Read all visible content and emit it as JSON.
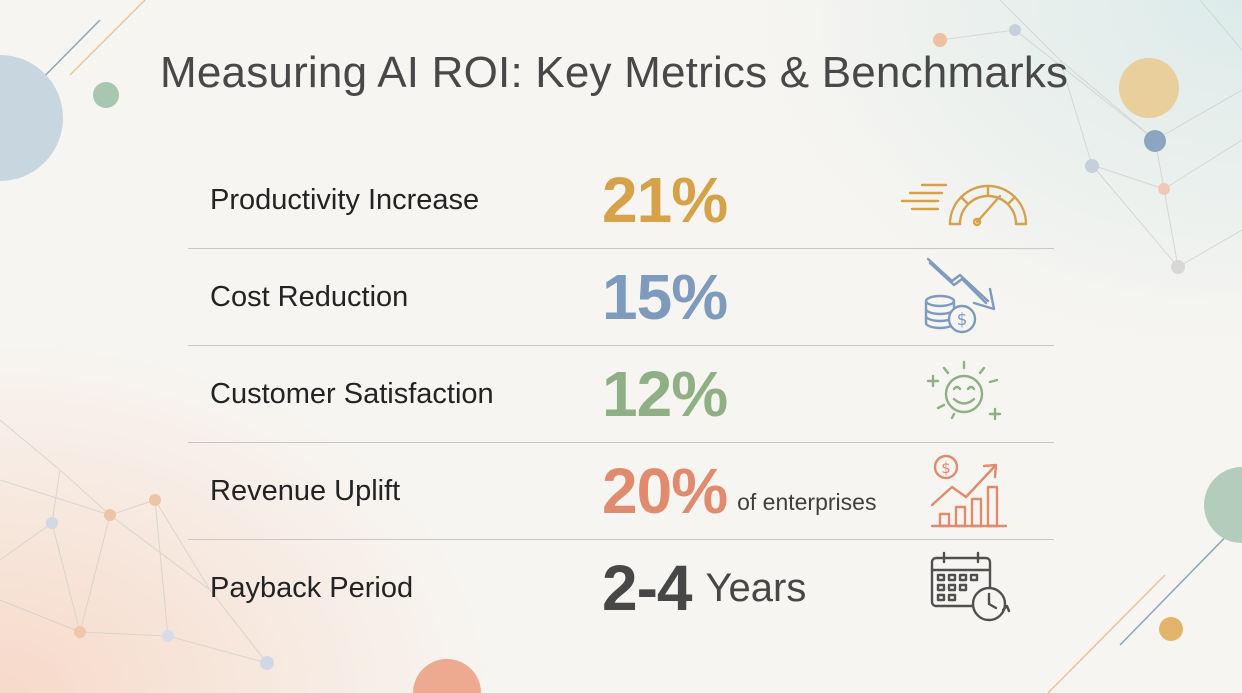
{
  "title": "Measuring AI ROI: Key Metrics & Benchmarks",
  "colors": {
    "gold": "#d5a24a",
    "blue": "#7e9bbd",
    "green": "#8faf85",
    "coral": "#e08a6e",
    "dark": "#474747",
    "divider": "#c9c9c3"
  },
  "metrics": [
    {
      "label": "Productivity Increase",
      "value": "21%",
      "icon": "speedometer-icon"
    },
    {
      "label": "Cost Reduction",
      "value": "15%",
      "icon": "coins-down-arrow-icon"
    },
    {
      "label": "Customer Satisfaction",
      "value": "12%",
      "icon": "smiley-face-icon"
    },
    {
      "label": "Revenue Uplift",
      "value": "20%",
      "note": "of enterprises",
      "icon": "revenue-growth-chart-icon"
    },
    {
      "label": "Payback Period",
      "value": "2-4",
      "unit": "Years",
      "icon": "calendar-clock-icon"
    }
  ]
}
